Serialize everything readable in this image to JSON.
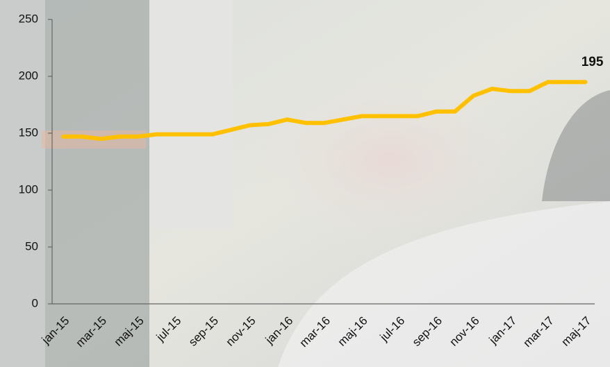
{
  "chart_data": {
    "type": "line",
    "categories": [
      "jan-15",
      null,
      "mar-15",
      null,
      "maj-15",
      null,
      "jul-15",
      null,
      "sep-15",
      null,
      "nov-15",
      null,
      "jan-16",
      null,
      "mar-16",
      null,
      "maj-16",
      null,
      "jul-16",
      null,
      "sep-16",
      null,
      "nov-16",
      null,
      "jan-17",
      null,
      "mar-17",
      null,
      "maj-17"
    ],
    "values": [
      147,
      147,
      145,
      147,
      147,
      149,
      149,
      149,
      149,
      153,
      157,
      158,
      162,
      159,
      159,
      162,
      165,
      165,
      165,
      165,
      169,
      169,
      183,
      189,
      187,
      187,
      195,
      195,
      195
    ],
    "color": "#ffc000",
    "ylim": [
      0,
      250
    ],
    "yticks": [
      0,
      50,
      100,
      150,
      200,
      250
    ]
  }
}
